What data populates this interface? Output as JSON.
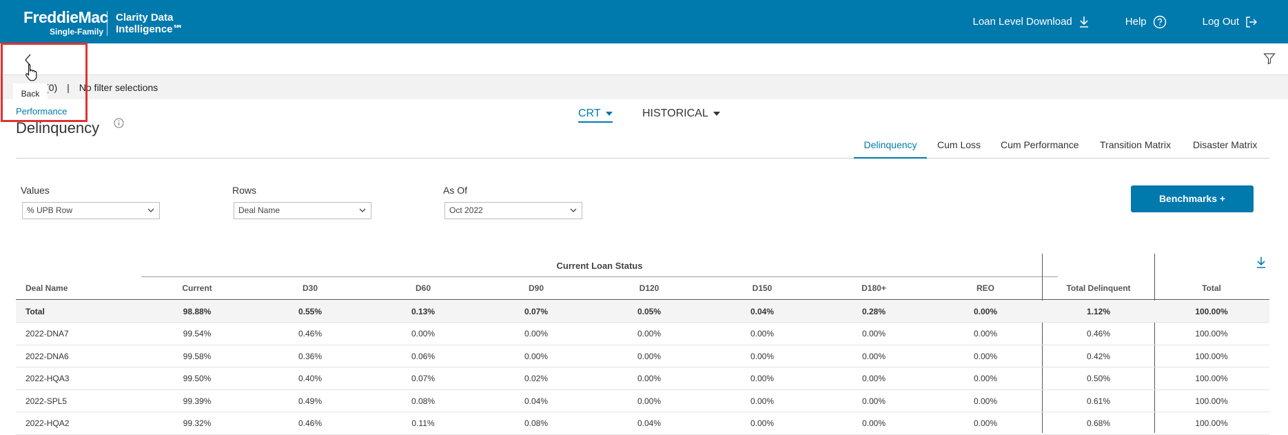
{
  "header": {
    "logo_main": "FreddieMac",
    "logo_sub": "Single-Family",
    "product_line1": "Clarity Data",
    "product_line2": "Intelligence℠",
    "nav": {
      "download": "Loan Level Download",
      "help": "Help",
      "logout": "Log Out"
    }
  },
  "subbar": {
    "back_tooltip": "Back"
  },
  "filterbar": {
    "count": "(0)",
    "separator": "|",
    "text": "No filter selections"
  },
  "breadcrumb": "Performance",
  "title": "Delinquency",
  "dropdowns": {
    "crt": "CRT",
    "historical": "HISTORICAL"
  },
  "tabs": [
    "Delinquency",
    "Cum Loss",
    "Cum Performance",
    "Transition Matrix",
    "Disaster Matrix"
  ],
  "controls": {
    "values_label": "Values",
    "values_selected": "% UPB Row",
    "rows_label": "Rows",
    "rows_selected": "Deal Name",
    "asof_label": "As Of",
    "asof_selected": "Oct 2022"
  },
  "benchmarks_button": "Benchmarks +",
  "table": {
    "group_header": "Current Loan Status",
    "columns": [
      "Deal Name",
      "Current",
      "D30",
      "D60",
      "D90",
      "D120",
      "D150",
      "D180+",
      "REO",
      "Total Delinquent",
      "Total"
    ],
    "rows": [
      [
        "Total",
        "98.88%",
        "0.55%",
        "0.13%",
        "0.07%",
        "0.05%",
        "0.04%",
        "0.28%",
        "0.00%",
        "1.12%",
        "100.00%"
      ],
      [
        "2022-DNA7",
        "99.54%",
        "0.46%",
        "0.00%",
        "0.00%",
        "0.00%",
        "0.00%",
        "0.00%",
        "0.00%",
        "0.46%",
        "100.00%"
      ],
      [
        "2022-DNA6",
        "99.58%",
        "0.36%",
        "0.06%",
        "0.00%",
        "0.00%",
        "0.00%",
        "0.00%",
        "0.00%",
        "0.42%",
        "100.00%"
      ],
      [
        "2022-HQA3",
        "99.50%",
        "0.40%",
        "0.07%",
        "0.02%",
        "0.00%",
        "0.00%",
        "0.00%",
        "0.00%",
        "0.50%",
        "100.00%"
      ],
      [
        "2022-SPL5",
        "99.39%",
        "0.49%",
        "0.08%",
        "0.04%",
        "0.00%",
        "0.00%",
        "0.00%",
        "0.00%",
        "0.61%",
        "100.00%"
      ],
      [
        "2022-HQA2",
        "99.32%",
        "0.46%",
        "0.11%",
        "0.08%",
        "0.04%",
        "0.00%",
        "0.00%",
        "0.00%",
        "0.68%",
        "100.00%"
      ]
    ]
  },
  "colors": {
    "brand": "#0079ad",
    "highlight": "#e0322d"
  }
}
